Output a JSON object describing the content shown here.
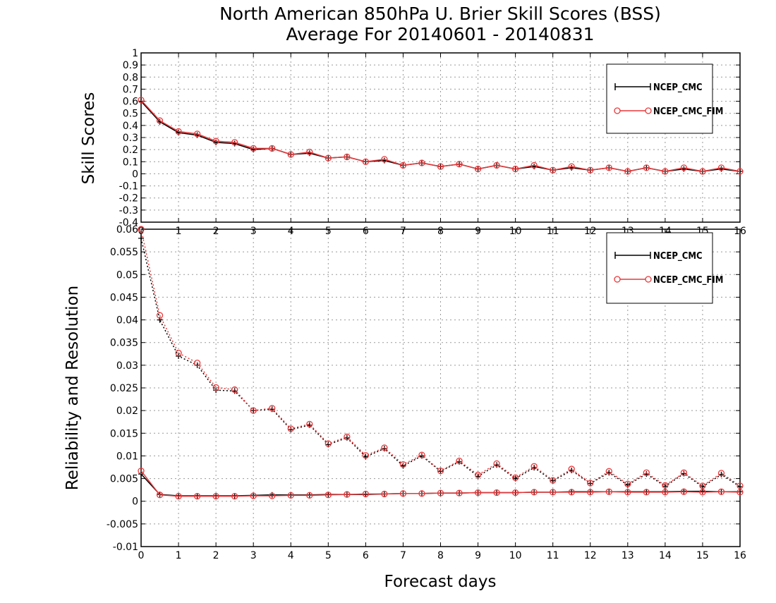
{
  "title_line1": "North American 850hPa U. Brier Skill Scores (BSS)",
  "title_line2": "Average For 20140601 - 20140831",
  "xlabel": "Forecast days",
  "colors": {
    "ncep_cmc": "#000000",
    "ncep_cmc_fim": "#e8383a",
    "grid": "#999999"
  },
  "chart_data": [
    {
      "type": "line",
      "ylabel": "Skill Scores",
      "xlim": [
        0,
        16
      ],
      "ylim": [
        -0.4,
        1
      ],
      "x_ticks": [
        "0",
        "1",
        "2",
        "3",
        "4",
        "5",
        "6",
        "7",
        "8",
        "9",
        "10",
        "11",
        "12",
        "13",
        "14",
        "15",
        "16"
      ],
      "y_ticks": [
        "-0.4",
        "-0.3",
        "-0.2",
        "-0.1",
        "0",
        "0.1",
        "0.2",
        "0.3",
        "0.4",
        "0.5",
        "0.6",
        "0.7",
        "0.8",
        "0.9",
        "1"
      ],
      "grid": true,
      "legend_position": "top-right",
      "x": [
        0,
        0.5,
        1,
        1.5,
        2,
        2.5,
        3,
        3.5,
        4,
        4.5,
        5,
        5.5,
        6,
        6.5,
        7,
        7.5,
        8,
        8.5,
        9,
        9.5,
        10,
        10.5,
        11,
        11.5,
        12,
        12.5,
        13,
        13.5,
        14,
        14.5,
        15,
        15.5,
        16
      ],
      "series": [
        {
          "name": "NCEP_CMC",
          "style": "solid",
          "marker": "plus",
          "values": [
            0.6,
            0.43,
            0.34,
            0.32,
            0.26,
            0.25,
            0.2,
            0.21,
            0.16,
            0.17,
            0.13,
            0.14,
            0.1,
            0.11,
            0.07,
            0.09,
            0.06,
            0.08,
            0.04,
            0.07,
            0.04,
            0.06,
            0.03,
            0.05,
            0.03,
            0.05,
            0.02,
            0.05,
            0.02,
            0.04,
            0.02,
            0.04,
            0.02
          ]
        },
        {
          "name": "NCEP_CMC_FIM",
          "style": "solid",
          "marker": "circle",
          "values": [
            0.61,
            0.44,
            0.35,
            0.33,
            0.27,
            0.26,
            0.21,
            0.21,
            0.16,
            0.18,
            0.13,
            0.14,
            0.1,
            0.12,
            0.07,
            0.09,
            0.06,
            0.08,
            0.04,
            0.07,
            0.04,
            0.07,
            0.03,
            0.06,
            0.03,
            0.05,
            0.02,
            0.05,
            0.02,
            0.05,
            0.02,
            0.05,
            0.02
          ]
        }
      ]
    },
    {
      "type": "line",
      "ylabel": "Reliability and Resolution",
      "xlim": [
        0,
        16
      ],
      "ylim": [
        -0.01,
        0.06
      ],
      "x_ticks": [
        "0",
        "1",
        "2",
        "3",
        "4",
        "5",
        "6",
        "7",
        "8",
        "9",
        "10",
        "11",
        "12",
        "13",
        "14",
        "15",
        "16"
      ],
      "y_ticks": [
        "-0.01",
        "-0.005",
        "0",
        "0.005",
        "0.01",
        "0.015",
        "0.02",
        "0.025",
        "0.03",
        "0.035",
        "0.04",
        "0.045",
        "0.05",
        "0.055",
        "0.06"
      ],
      "grid": true,
      "legend_position": "top-right",
      "x": [
        0,
        0.5,
        1,
        1.5,
        2,
        2.5,
        3,
        3.5,
        4,
        4.5,
        5,
        5.5,
        6,
        6.5,
        7,
        7.5,
        8,
        8.5,
        9,
        9.5,
        10,
        10.5,
        11,
        11.5,
        12,
        12.5,
        13,
        13.5,
        14,
        14.5,
        15,
        15.5,
        16
      ],
      "series": [
        {
          "name": "NCEP_CMC",
          "style": "solid",
          "marker": "plus",
          "values": [
            0.006,
            0.0015,
            0.0012,
            0.0012,
            0.0012,
            0.0012,
            0.0013,
            0.0014,
            0.0014,
            0.0014,
            0.0015,
            0.0015,
            0.0015,
            0.0016,
            0.0017,
            0.0017,
            0.0018,
            0.0018,
            0.0019,
            0.0019,
            0.0019,
            0.002,
            0.002,
            0.0021,
            0.0021,
            0.0021,
            0.0021,
            0.0021,
            0.0021,
            0.0022,
            0.0022,
            0.0021,
            0.0021
          ]
        },
        {
          "name": "NCEP_CMC_FIM",
          "style": "solid",
          "marker": "circle",
          "values": [
            0.0067,
            0.0014,
            0.0011,
            0.0011,
            0.0011,
            0.0011,
            0.0012,
            0.0012,
            0.0013,
            0.0013,
            0.0014,
            0.0015,
            0.0016,
            0.0016,
            0.0017,
            0.0017,
            0.0018,
            0.0018,
            0.0019,
            0.0019,
            0.0019,
            0.002,
            0.002,
            0.002,
            0.002,
            0.0021,
            0.002,
            0.002,
            0.002,
            0.0021,
            0.002,
            0.0021,
            0.002
          ]
        },
        {
          "name": "",
          "style": "dotted",
          "marker": "plus",
          "color_key": "ncep_cmc",
          "values": [
            0.058,
            0.04,
            0.032,
            0.03,
            0.0245,
            0.0243,
            0.02,
            0.0203,
            0.0158,
            0.0168,
            0.0125,
            0.014,
            0.0098,
            0.0116,
            0.0078,
            0.01,
            0.0066,
            0.0087,
            0.0055,
            0.008,
            0.005,
            0.0074,
            0.0045,
            0.0068,
            0.0039,
            0.0063,
            0.0036,
            0.006,
            0.0033,
            0.0061,
            0.0032,
            0.0059,
            0.0032
          ]
        },
        {
          "name": "",
          "style": "dotted",
          "marker": "circle",
          "color_key": "ncep_cmc_fim",
          "values": [
            0.06,
            0.041,
            0.0327,
            0.0305,
            0.0251,
            0.0246,
            0.02,
            0.0205,
            0.016,
            0.017,
            0.0127,
            0.0142,
            0.0101,
            0.0118,
            0.0081,
            0.0102,
            0.0067,
            0.0089,
            0.0058,
            0.0083,
            0.0052,
            0.0077,
            0.0046,
            0.0071,
            0.004,
            0.0066,
            0.0038,
            0.0063,
            0.0035,
            0.0063,
            0.0034,
            0.0062,
            0.0034
          ]
        }
      ]
    }
  ]
}
